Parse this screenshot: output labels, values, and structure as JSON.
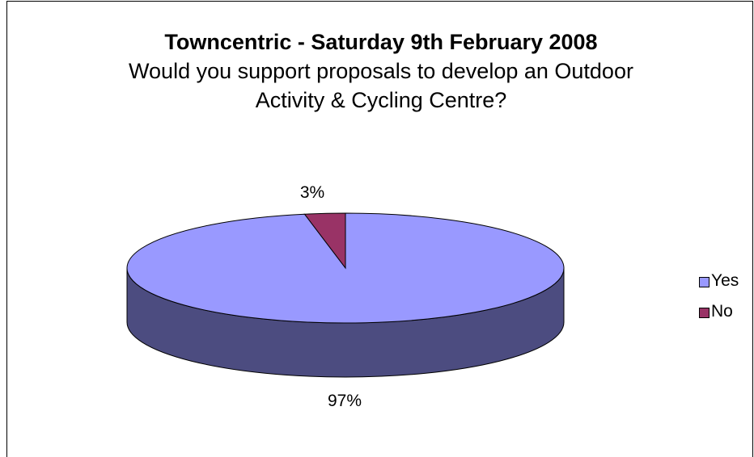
{
  "chart_data": {
    "type": "pie",
    "title": "Towncentric - Saturday 9th February 2008",
    "subtitle_lines": [
      "Would you support proposals to develop an Outdoor",
      "Activity & Cycling Centre?"
    ],
    "categories": [
      "Yes",
      "No"
    ],
    "values": [
      97,
      3
    ],
    "data_labels": [
      "97%",
      "3%"
    ],
    "colors": [
      "#9999ff",
      "#993366"
    ],
    "side_colors": [
      "#4c4c80",
      "#4d1a33"
    ],
    "legend_position": "right",
    "three_d": true
  }
}
